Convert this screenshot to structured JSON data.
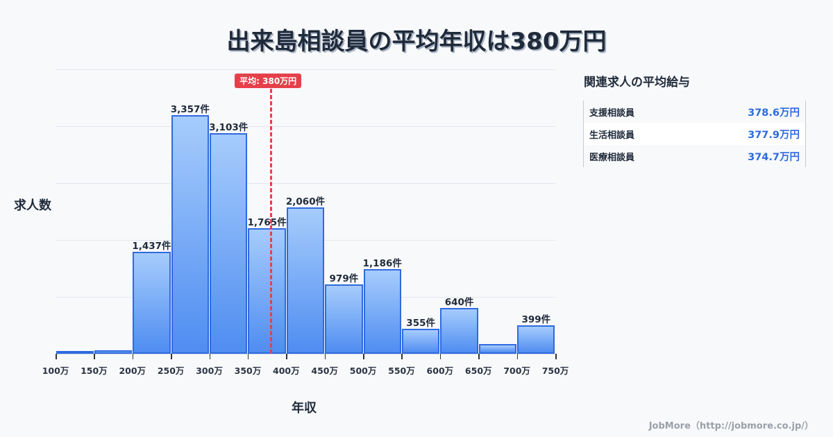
{
  "title": "出来島相談員の平均年収は380万円",
  "axis": {
    "ylabel": "求人数",
    "xlabel": "年収"
  },
  "mean": {
    "label": "平均: 380万円",
    "value": 380
  },
  "related": {
    "title": "関連求人の平均給与",
    "items": [
      {
        "name": "支援相談員",
        "value": "378.6万円"
      },
      {
        "name": "生活相談員",
        "value": "377.9万円"
      },
      {
        "name": "医療相談員",
        "value": "374.7万円"
      }
    ]
  },
  "footer": "JobMore（http://jobmore.co.jp/）",
  "chart_data": {
    "type": "bar",
    "title": "出来島相談員の平均年収は380万円",
    "xlabel": "年収",
    "ylabel": "求人数",
    "x_ticks": [
      "100万",
      "150万",
      "200万",
      "250万",
      "300万",
      "350万",
      "400万",
      "450万",
      "500万",
      "550万",
      "600万",
      "650万",
      "700万",
      "750万"
    ],
    "categories": [
      "100-150万",
      "150-200万",
      "200-250万",
      "250-300万",
      "300-350万",
      "350-400万",
      "400-450万",
      "450-500万",
      "500-550万",
      "550-600万",
      "600-650万",
      "650-700万",
      "700-750万"
    ],
    "values": [
      20,
      50,
      1437,
      3357,
      3103,
      1765,
      2060,
      979,
      1186,
      355,
      640,
      135,
      399
    ],
    "labels": [
      "",
      "",
      "1,437件",
      "3,357件",
      "3,103件",
      "1,765件",
      "2,060件",
      "979件",
      "1,186件",
      "355件",
      "640件",
      "",
      "399件"
    ],
    "ylim": [
      0,
      4000
    ],
    "grid": true,
    "mean_line": 380
  }
}
